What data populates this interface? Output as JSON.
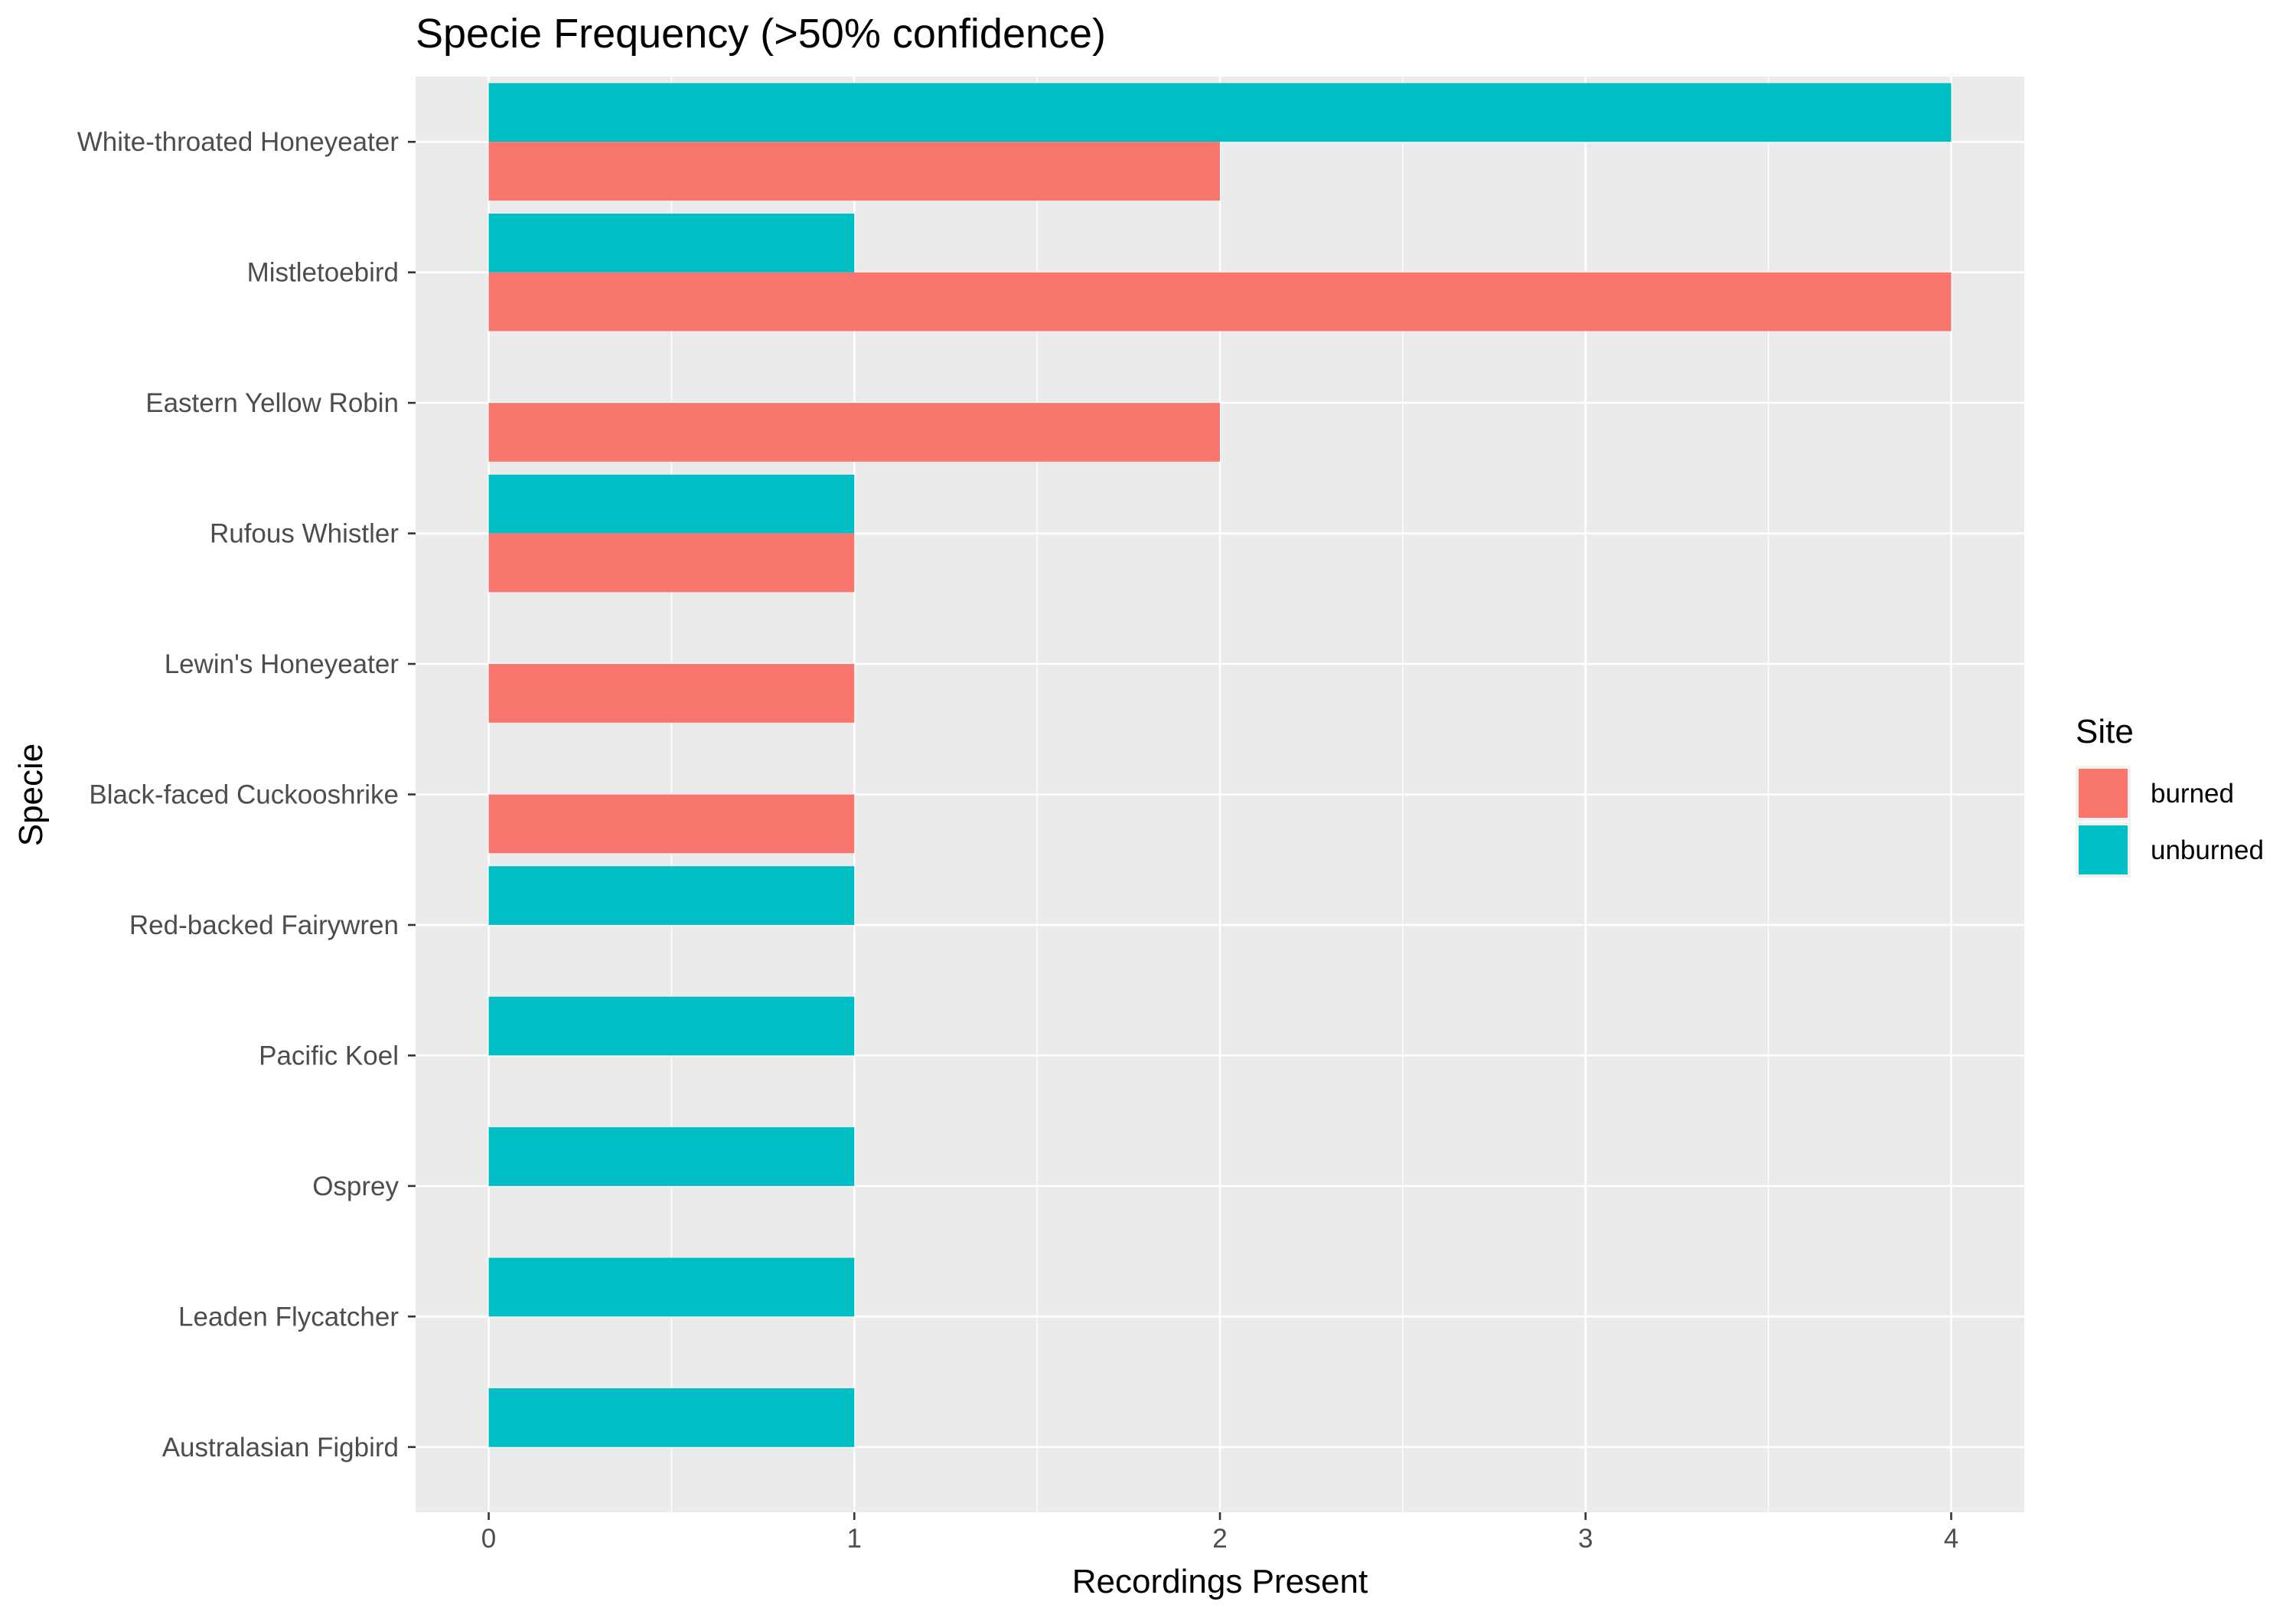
{
  "chart_data": {
    "type": "bar",
    "orientation": "horizontal",
    "title": "Specie Frequency (>50% confidence)",
    "xlabel": "Recordings Present",
    "ylabel": "Specie",
    "xlim": [
      -0.2,
      4.2
    ],
    "x_ticks": [
      0,
      1,
      2,
      3,
      4
    ],
    "grid": true,
    "legend": {
      "title": "Site",
      "position": "right"
    },
    "categories": [
      "White-throated Honeyeater",
      "Mistletoebird",
      "Eastern Yellow Robin",
      "Rufous Whistler",
      "Lewin's Honeyeater",
      "Black-faced Cuckooshrike",
      "Red-backed Fairywren",
      "Pacific Koel",
      "Osprey",
      "Leaden Flycatcher",
      "Australasian Figbird"
    ],
    "series": [
      {
        "name": "burned",
        "color": "#F8766D",
        "values": [
          2,
          4,
          2,
          1,
          1,
          1,
          null,
          null,
          null,
          null,
          null
        ]
      },
      {
        "name": "unburned",
        "color": "#00BFC4",
        "values": [
          4,
          1,
          null,
          1,
          null,
          null,
          1,
          1,
          1,
          1,
          1
        ]
      }
    ]
  }
}
